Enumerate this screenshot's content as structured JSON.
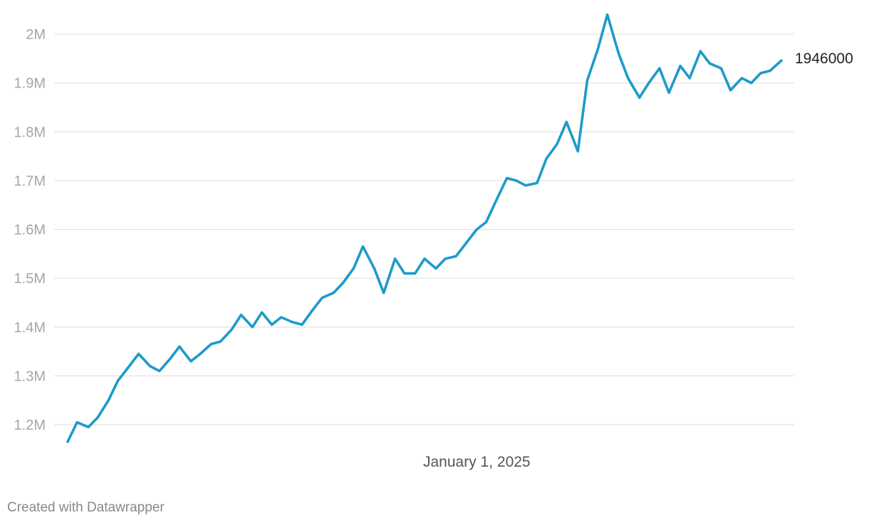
{
  "chart_data": {
    "type": "line",
    "title": "",
    "xlabel": "",
    "ylabel": "",
    "ylim": [
      1160000,
      2040000
    ],
    "grid": true,
    "legend": "none",
    "line_color": "#1d9bc9",
    "y_ticks": [
      {
        "value": 1200000,
        "label": "1.2M"
      },
      {
        "value": 1300000,
        "label": "1.3M"
      },
      {
        "value": 1400000,
        "label": "1.4M"
      },
      {
        "value": 1500000,
        "label": "1.5M"
      },
      {
        "value": 1600000,
        "label": "1.6M"
      },
      {
        "value": 1700000,
        "label": "1.7M"
      },
      {
        "value": 1800000,
        "label": "1.8M"
      },
      {
        "value": 1900000,
        "label": "1.9M"
      },
      {
        "value": 2000000,
        "label": "2M"
      }
    ],
    "x_ticks": [
      {
        "value": "2025-01-01",
        "label": "January 1, 2025"
      }
    ],
    "end_label": "1946000",
    "series": [
      {
        "x": [
          "2023-05-01",
          "2023-05-15",
          "2023-06-01",
          "2023-06-15",
          "2023-07-01",
          "2023-07-15",
          "2023-08-01",
          "2023-08-15",
          "2023-09-01",
          "2023-09-15",
          "2023-10-01",
          "2023-10-15",
          "2023-11-01",
          "2023-11-15",
          "2023-12-01",
          "2023-12-15",
          "2024-01-01",
          "2024-01-15",
          "2024-02-01",
          "2024-02-15",
          "2024-03-01",
          "2024-03-15",
          "2024-04-01",
          "2024-04-15",
          "2024-05-01",
          "2024-05-15",
          "2024-06-01",
          "2024-06-15",
          "2024-07-01",
          "2024-07-15",
          "2024-08-01",
          "2024-08-15",
          "2024-09-01",
          "2024-09-15",
          "2024-10-01",
          "2024-10-15",
          "2024-11-01",
          "2024-11-15",
          "2024-12-01",
          "2024-12-15",
          "2025-01-01",
          "2025-01-15",
          "2025-02-01",
          "2025-02-15",
          "2025-03-01",
          "2025-03-15",
          "2025-04-01",
          "2025-04-15",
          "2025-05-01",
          "2025-05-15",
          "2025-06-01",
          "2025-06-15",
          "2025-07-01",
          "2025-07-15",
          "2025-08-01",
          "2025-08-15",
          "2025-09-01",
          "2025-09-15",
          "2025-10-01",
          "2025-10-15",
          "2025-11-01",
          "2025-11-15",
          "2025-12-01",
          "2025-12-15",
          "2026-01-01",
          "2026-01-15",
          "2026-02-01",
          "2026-02-15",
          "2026-03-01",
          "2026-03-15",
          "2026-04-01"
        ],
        "values": [
          1165000,
          1205000,
          1195000,
          1215000,
          1250000,
          1290000,
          1320000,
          1345000,
          1320000,
          1310000,
          1335000,
          1360000,
          1330000,
          1345000,
          1365000,
          1370000,
          1395000,
          1425000,
          1400000,
          1430000,
          1405000,
          1420000,
          1410000,
          1405000,
          1435000,
          1460000,
          1470000,
          1490000,
          1520000,
          1565000,
          1520000,
          1470000,
          1540000,
          1510000,
          1510000,
          1540000,
          1520000,
          1540000,
          1545000,
          1570000,
          1600000,
          1615000,
          1665000,
          1705000,
          1700000,
          1690000,
          1695000,
          1745000,
          1775000,
          1820000,
          1760000,
          1905000,
          1970000,
          2040000,
          1960000,
          1910000,
          1870000,
          1900000,
          1930000,
          1880000,
          1935000,
          1910000,
          1965000,
          1940000,
          1930000,
          1885000,
          1910000,
          1900000,
          1920000,
          1925000,
          1946000
        ]
      }
    ]
  },
  "footer": {
    "credit": "Created with Datawrapper"
  }
}
